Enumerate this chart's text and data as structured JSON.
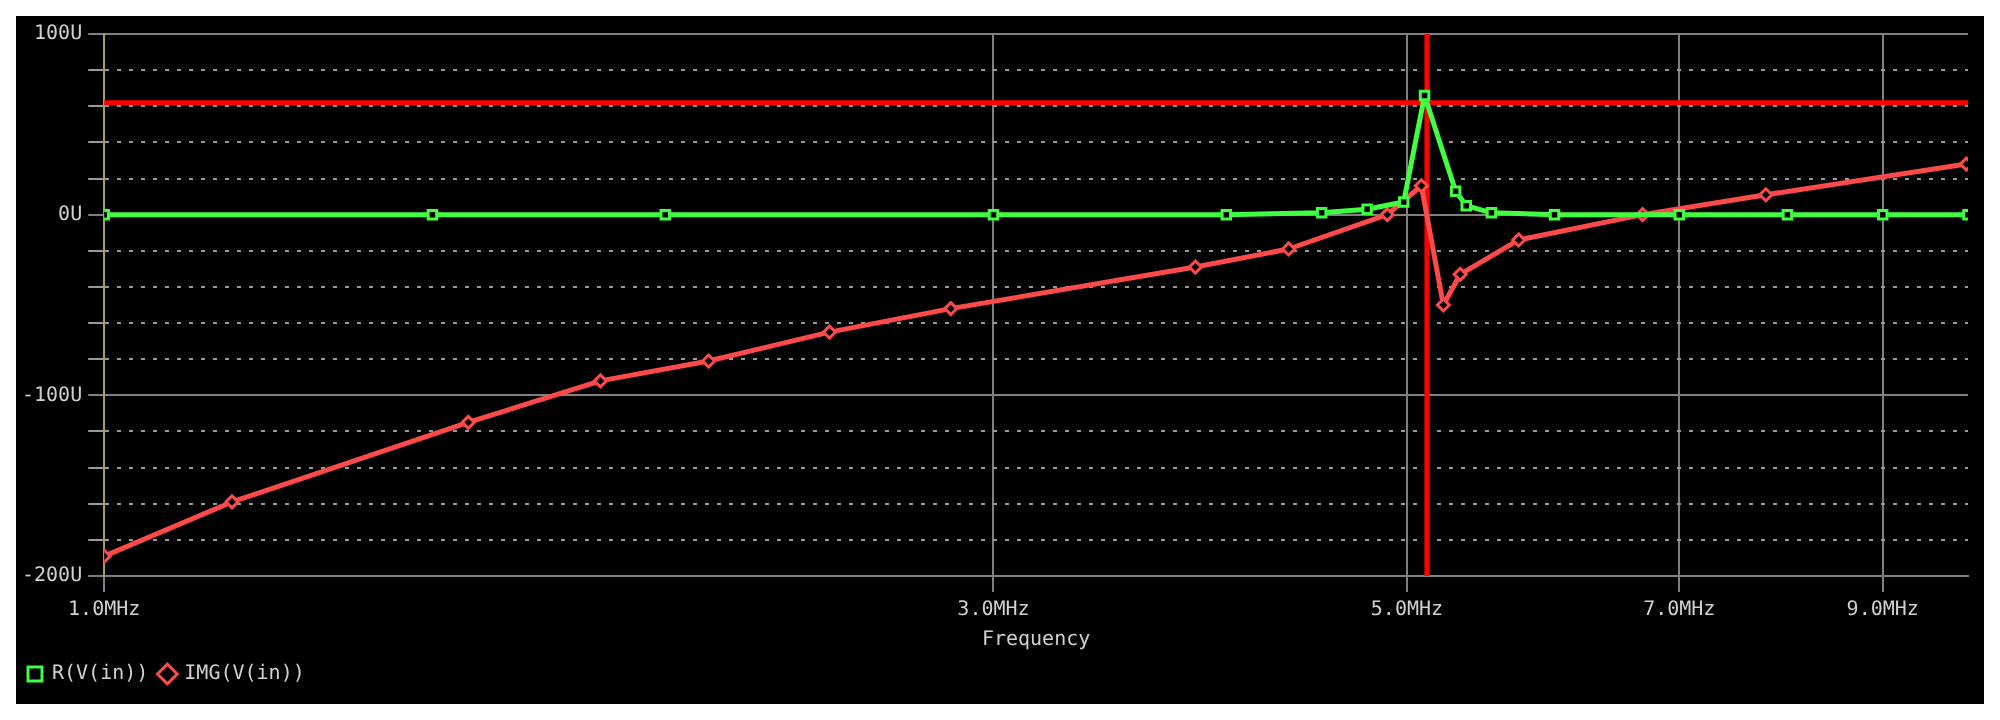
{
  "chart_data": {
    "type": "line",
    "xlabel": "Frequency",
    "log": "x",
    "grid": true,
    "legend": "bottom left",
    "line_style": "solid",
    "xlim": [
      1,
      10
    ],
    "xticks": [
      {
        "value": 1,
        "label": "1.0MHz"
      },
      {
        "value": 3,
        "label": "3.0MHz"
      },
      {
        "value": 5,
        "label": "5.0MHz"
      },
      {
        "value": 7,
        "label": "7.0MHz"
      },
      {
        "value": 9,
        "label": "9.0MHz"
      }
    ],
    "ylim": [
      -200,
      100
    ],
    "yticks": [
      {
        "value": -200,
        "label": "-200U"
      },
      {
        "value": -180,
        "label": null
      },
      {
        "value": -160,
        "label": null
      },
      {
        "value": -140,
        "label": null
      },
      {
        "value": -120,
        "label": null
      },
      {
        "value": -100,
        "label": "-100U"
      },
      {
        "value": -80,
        "label": null
      },
      {
        "value": -60,
        "label": null
      },
      {
        "value": -40,
        "label": null
      },
      {
        "value": -20,
        "label": null
      },
      {
        "value": 0,
        "label": "0U"
      },
      {
        "value": 20,
        "label": null
      },
      {
        "value": 40,
        "label": null
      },
      {
        "value": 60,
        "label": null
      },
      {
        "value": 80,
        "label": null
      },
      {
        "value": 100,
        "label": "100U"
      }
    ],
    "series": [
      {
        "name": "R(V(in))",
        "color": "#40ff40",
        "marker": "square",
        "x": [
          1.0,
          1.5,
          2.0,
          3.0,
          4.0,
          4.5,
          4.76,
          4.98,
          5.11,
          5.31,
          5.38,
          5.55,
          6.0,
          7.0,
          8.0,
          9.0,
          10.0
        ],
        "values": [
          0,
          0,
          0,
          0,
          0,
          1,
          3,
          7,
          66,
          13,
          5,
          1,
          0,
          0,
          0,
          0,
          0
        ]
      },
      {
        "name": "IMG(V(in))",
        "color": "#ff4a4a",
        "marker": "diamond",
        "x": [
          1.0,
          1.171,
          1.568,
          1.846,
          2.11,
          2.45,
          2.846,
          3.85,
          4.32,
          4.88,
          5.09,
          5.23,
          5.34,
          5.74,
          6.69,
          7.79,
          9.98
        ],
        "values": [
          -189,
          -159,
          -115,
          -92,
          -81,
          -65,
          -52,
          -29,
          -19,
          0,
          16,
          -50,
          -33,
          -14,
          0,
          11,
          28
        ]
      }
    ],
    "ref_lines": [
      {
        "axis": "y",
        "value": 62,
        "color": "#ff0000"
      },
      {
        "axis": "x",
        "value": 5.125,
        "color": "#ff0000"
      }
    ]
  }
}
